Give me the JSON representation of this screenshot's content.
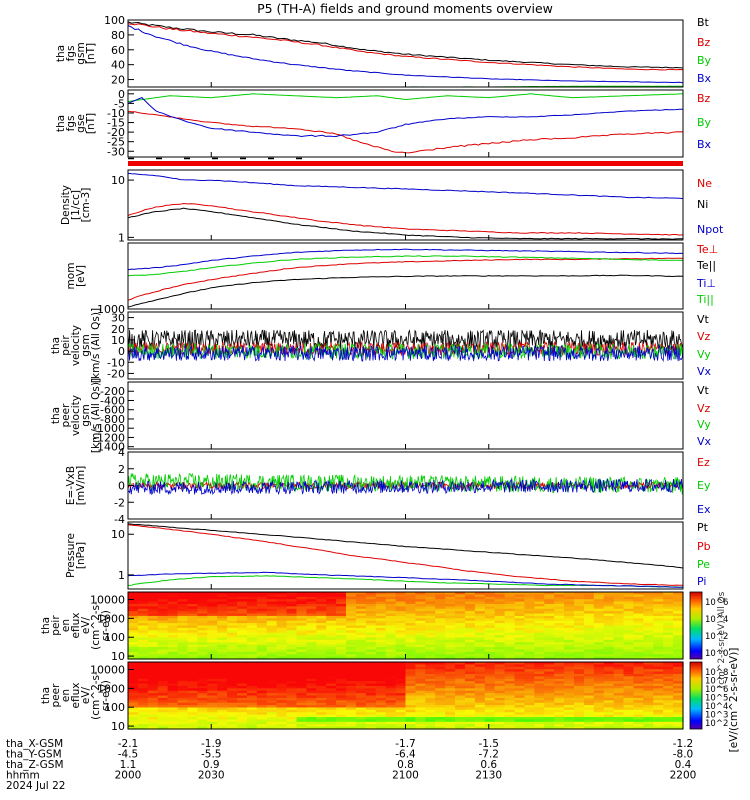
{
  "title": "P5 (TH-A) fields and ground moments overview",
  "colors": {
    "black": "#000000",
    "red": "#dd0000",
    "green": "#00cc00",
    "blue": "#0000cc"
  },
  "chart_data": [
    {
      "type": "line",
      "panel": "fgs_gsm_magnitude",
      "ylabel": [
        "tha",
        "fgs",
        "gsm",
        "[nT]"
      ],
      "ylim": [
        10,
        100
      ],
      "yticks": [
        100,
        80,
        60,
        40,
        20
      ],
      "ytick_labels": [
        "100",
        "80",
        "60",
        "40",
        "20"
      ],
      "series": [
        {
          "name": "Bt",
          "color": "#000000",
          "x": [
            2000,
            2015,
            2030,
            2045,
            2055,
            2070,
            2085,
            2100,
            2115,
            2130,
            2145,
            2160,
            2180,
            2200
          ],
          "y": [
            97,
            90,
            84,
            80,
            75,
            69,
            60,
            54,
            50,
            46,
            43,
            40,
            37,
            36
          ]
        },
        {
          "name": "Bz",
          "color": "#dd0000",
          "x": [
            2000,
            2015,
            2030,
            2045,
            2055,
            2070,
            2085,
            2100,
            2115,
            2130,
            2145,
            2160,
            2180,
            2200
          ],
          "y": [
            96,
            88,
            82,
            77,
            73,
            66,
            57,
            51,
            47,
            43,
            40,
            37,
            34,
            33
          ]
        },
        {
          "name": "By",
          "color": "#00cc00",
          "x": [
            2000,
            2030,
            2060,
            2100,
            2130,
            2160,
            2200
          ],
          "y": [
            8,
            9,
            9,
            10,
            10,
            11,
            11
          ]
        },
        {
          "name": "Bx",
          "color": "#0000cc",
          "x": [
            2000,
            2010,
            2020,
            2030,
            2045,
            2060,
            2080,
            2100,
            2130,
            2160,
            2200
          ],
          "y": [
            92,
            78,
            67,
            58,
            48,
            40,
            32,
            26,
            21,
            18,
            16
          ]
        }
      ]
    },
    {
      "type": "line",
      "panel": "fgs_gse_components",
      "ylabel": [
        "tha",
        "fgs",
        "gse",
        "[nT]"
      ],
      "ylim": [
        -33,
        2
      ],
      "yticks": [
        0,
        -5,
        -10,
        -15,
        -20,
        -25,
        -30
      ],
      "ytick_labels": [
        "0",
        "-5",
        "-10",
        "-15",
        "-20",
        "-25",
        "-30"
      ],
      "series": [
        {
          "name": "Bz",
          "color": "#dd0000",
          "x": [
            2000,
            2010,
            2020,
            2030,
            2045,
            2060,
            2075,
            2085,
            2095,
            2100,
            2115,
            2130,
            2145,
            2160,
            2180,
            2200
          ],
          "y": [
            -9,
            -11,
            -13,
            -15,
            -17,
            -18,
            -21,
            -26,
            -30,
            -31,
            -28,
            -26,
            -24,
            -23,
            -21,
            -20
          ]
        },
        {
          "name": "By",
          "color": "#00cc00",
          "x": [
            2000,
            2015,
            2030,
            2045,
            2060,
            2075,
            2090,
            2100,
            2115,
            2130,
            2145,
            2160,
            2180,
            2200
          ],
          "y": [
            -4,
            -1,
            -2,
            0,
            -1,
            -2,
            -1,
            -3,
            -1,
            -2,
            0,
            -2,
            -1,
            0
          ]
        },
        {
          "name": "Bx",
          "color": "#0000cc",
          "x": [
            2000,
            2005,
            2010,
            2020,
            2030,
            2045,
            2060,
            2075,
            2090,
            2100,
            2115,
            2130,
            2145,
            2160,
            2180,
            2200
          ],
          "y": [
            -5,
            -2,
            -9,
            -14,
            -18,
            -20,
            -22,
            -22,
            -20,
            -16,
            -13,
            -12,
            -12,
            -11,
            -9,
            -8
          ]
        }
      ]
    },
    {
      "type": "line",
      "panel": "density",
      "scale": "log",
      "ylabel": [
        "Density",
        "[1/cc]",
        "[cm-3]"
      ],
      "ylim": [
        0.9,
        15
      ],
      "yticks": [
        10,
        1
      ],
      "ytick_labels": [
        "10",
        "1"
      ],
      "series": [
        {
          "name": "Ne",
          "color": "#dd0000",
          "x": [
            2000,
            2010,
            2020,
            2030,
            2040,
            2055,
            2070,
            2085,
            2100,
            2120,
            2140,
            2160,
            2180,
            2200
          ],
          "y": [
            2.4,
            3.4,
            3.9,
            3.6,
            3.0,
            2.4,
            1.9,
            1.6,
            1.4,
            1.3,
            1.2,
            1.2,
            1.15,
            1.1
          ]
        },
        {
          "name": "Ni",
          "color": "#000000",
          "x": [
            2000,
            2010,
            2020,
            2030,
            2045,
            2060,
            2080,
            2100,
            2120,
            2140,
            2160,
            2180,
            2200
          ],
          "y": [
            2.2,
            2.8,
            3.2,
            2.8,
            2.2,
            1.7,
            1.3,
            1.1,
            1.0,
            0.95,
            0.95,
            0.95,
            0.93
          ]
        },
        {
          "name": "Npot",
          "color": "#0000cc",
          "x": [
            2000,
            2010,
            2015,
            2020,
            2030,
            2045,
            2060,
            2080,
            2100,
            2120,
            2140,
            2160,
            2180,
            2200
          ],
          "y": [
            13,
            12,
            11,
            10,
            10,
            9,
            8,
            7.5,
            7,
            6.5,
            6,
            5.5,
            5,
            4.8
          ]
        }
      ]
    },
    {
      "type": "line",
      "panel": "temperature",
      "scale": "log",
      "ylabel": [
        "mom",
        "[eV]"
      ],
      "ylim": [
        1000,
        20000
      ],
      "yticks": [
        1000
      ],
      "ytick_labels": [
        "1000"
      ],
      "series": [
        {
          "name": "Te⊥",
          "color": "#dd0000",
          "x": [
            2000,
            2010,
            2020,
            2030,
            2045,
            2060,
            2080,
            2100,
            2120,
            2140,
            2160,
            2180,
            2200
          ],
          "y": [
            1500,
            2200,
            3000,
            3800,
            5000,
            6500,
            7800,
            8500,
            9000,
            9500,
            9500,
            9800,
            10000
          ]
        },
        {
          "name": "Te||",
          "color": "#000000",
          "x": [
            2000,
            2010,
            2020,
            2030,
            2045,
            2060,
            2080,
            2100,
            2120,
            2140,
            2160,
            2180,
            2200
          ],
          "y": [
            1100,
            1500,
            2000,
            2600,
            3300,
            3800,
            4200,
            4400,
            4500,
            4500,
            4500,
            4600,
            4400
          ]
        },
        {
          "name": "Ti⊥",
          "color": "#0000cc",
          "x": [
            2000,
            2010,
            2020,
            2030,
            2045,
            2060,
            2080,
            2100,
            2120,
            2140,
            2160,
            2180,
            2200
          ],
          "y": [
            6000,
            6500,
            7500,
            9000,
            11000,
            13000,
            14500,
            15000,
            14500,
            14000,
            13500,
            13000,
            12500
          ]
        },
        {
          "name": "Ti||",
          "color": "#00cc00",
          "x": [
            2000,
            2010,
            2020,
            2030,
            2045,
            2060,
            2080,
            2100,
            2120,
            2140,
            2160,
            2180,
            2200
          ],
          "y": [
            4500,
            4800,
            5500,
            6500,
            8000,
            9500,
            10500,
            11000,
            11000,
            10500,
            10000,
            9500,
            9000
          ]
        }
      ]
    },
    {
      "type": "line",
      "panel": "peir_velocity",
      "ylabel": [
        "tha",
        "peir",
        "velocity",
        "gsm",
        "[km/s (All Qs)]"
      ],
      "ylim": [
        -25,
        35
      ],
      "yticks": [
        30,
        20,
        10,
        0,
        -10,
        -20
      ],
      "ytick_labels": [
        "30",
        "20",
        "10",
        "0",
        "-10",
        "-20"
      ],
      "series": [
        {
          "name": "Vt",
          "color": "#000000",
          "x": [
            2000,
            2200
          ],
          "y": [
            10,
            10
          ],
          "noise": 9
        },
        {
          "name": "Vz",
          "color": "#dd0000",
          "x": [
            2000,
            2200
          ],
          "y": [
            2,
            2
          ],
          "noise": 6
        },
        {
          "name": "Vy",
          "color": "#00cc00",
          "x": [
            2000,
            2200
          ],
          "y": [
            0,
            0
          ],
          "noise": 7
        },
        {
          "name": "Vx",
          "color": "#0000cc",
          "x": [
            2000,
            2200
          ],
          "y": [
            -2,
            -2
          ],
          "noise": 7
        }
      ]
    },
    {
      "type": "line",
      "panel": "peer_velocity",
      "ylabel": [
        "tha",
        "peer",
        "velocity",
        "gsm",
        "[km/s (All Qs)]"
      ],
      "ylim": [
        -1450,
        0
      ],
      "yticks": [
        -200,
        -400,
        -600,
        -800,
        -1000,
        -1200,
        -1400
      ],
      "ytick_labels": [
        "-200",
        "-400",
        "-600",
        "-800",
        "-1000",
        "-1200",
        "-1400"
      ],
      "series": [
        {
          "name": "Vt",
          "color": "#000000",
          "x": [],
          "y": []
        },
        {
          "name": "Vz",
          "color": "#dd0000",
          "x": [],
          "y": []
        },
        {
          "name": "Vy",
          "color": "#00cc00",
          "x": [],
          "y": []
        },
        {
          "name": "Vx",
          "color": "#0000cc",
          "x": [],
          "y": []
        }
      ]
    },
    {
      "type": "line",
      "panel": "efield",
      "ylabel": [
        "E=-VxB",
        "[mV/m]"
      ],
      "ylim": [
        -4,
        4
      ],
      "yticks": [
        4,
        2,
        0,
        -2,
        -4
      ],
      "ytick_labels": [
        "4",
        "2",
        "0",
        "-2",
        "-4"
      ],
      "series": [
        {
          "name": "Ez",
          "color": "#dd0000",
          "x": [
            2000,
            2200
          ],
          "y": [
            0,
            0
          ],
          "noise": 0.4
        },
        {
          "name": "Ey",
          "color": "#00cc00",
          "x": [
            2000,
            2200
          ],
          "y": [
            0.5,
            0
          ],
          "noise": 1.0
        },
        {
          "name": "Ex",
          "color": "#0000cc",
          "x": [
            2000,
            2200
          ],
          "y": [
            -0.3,
            0
          ],
          "noise": 0.8
        }
      ]
    },
    {
      "type": "line",
      "panel": "pressure",
      "scale": "log",
      "ylabel": [
        "Pressure",
        "[nPa]"
      ],
      "ylim": [
        0.45,
        20
      ],
      "yticks": [
        10,
        1
      ],
      "ytick_labels": [
        "10",
        "1"
      ],
      "series": [
        {
          "name": "Pt",
          "color": "#000000",
          "x": [
            2000,
            2020,
            2040,
            2060,
            2080,
            2100,
            2120,
            2140,
            2160,
            2180,
            2200
          ],
          "y": [
            18,
            14,
            11,
            8.5,
            6.5,
            5,
            4,
            3.2,
            2.6,
            2.0,
            1.5
          ]
        },
        {
          "name": "Pb",
          "color": "#dd0000",
          "x": [
            2000,
            2020,
            2040,
            2060,
            2080,
            2100,
            2120,
            2140,
            2160,
            2180,
            2200
          ],
          "y": [
            17,
            12,
            8,
            5,
            3,
            2,
            1.3,
            0.9,
            0.7,
            0.6,
            0.55
          ]
        },
        {
          "name": "Pe",
          "color": "#00cc00",
          "x": [
            2000,
            2015,
            2030,
            2050,
            2070,
            2090,
            2110,
            2130,
            2150,
            2170,
            2200
          ],
          "y": [
            0.55,
            0.75,
            0.9,
            0.95,
            0.85,
            0.75,
            0.65,
            0.6,
            0.55,
            0.55,
            0.5
          ]
        },
        {
          "name": "Pi",
          "color": "#0000cc",
          "x": [
            2000,
            2015,
            2030,
            2050,
            2070,
            2090,
            2110,
            2130,
            2150,
            2170,
            2200
          ],
          "y": [
            0.95,
            1.05,
            1.1,
            1.15,
            1.0,
            0.9,
            0.8,
            0.7,
            0.6,
            0.55,
            0.5
          ]
        }
      ]
    },
    {
      "type": "heatmap",
      "panel": "peir_en_eflux",
      "scale": "log",
      "ylabel": [
        "tha",
        "peir",
        "en",
        "eflux",
        "eV/",
        "(cm^2-s-",
        "sr-eV)"
      ],
      "ylim": [
        7,
        25000
      ],
      "yticks": [
        10000,
        1000,
        100,
        10
      ],
      "ytick_labels": [
        "10000",
        "1000",
        "100",
        "10"
      ]
    },
    {
      "type": "heatmap",
      "panel": "peer_en_eflux",
      "scale": "log",
      "ylabel": [
        "tha",
        "peer",
        "en",
        "eflux",
        "eV/",
        "(cm^2-s-",
        "sr-eV)"
      ],
      "ylim": [
        7,
        25000
      ],
      "yticks": [
        10000,
        1000,
        100,
        10
      ],
      "ytick_labels": [
        "10000",
        "1000",
        "100",
        "10"
      ]
    }
  ],
  "colorbar": {
    "label": "[eV/(cm^2-s-sr-eV)]",
    "overlap_label": "(cm^2-s-sr-eV) All Qs",
    "ticks_upper": [
      "10^6",
      "10^4",
      "10^2",
      "10^0"
    ],
    "ticks_lower": [
      "10^8",
      "10^7",
      "10^6",
      "10^5",
      "10^4",
      "10^3",
      "10^2"
    ]
  },
  "xaxis": {
    "xlim": [
      2000,
      2200
    ],
    "ticks": [
      2000,
      2030,
      2100,
      2130,
      2200
    ],
    "rows": [
      {
        "label": "tha_X-GSM",
        "values": [
          "-2.1",
          "-1.9",
          "-1.7",
          "-1.5",
          "-1.2"
        ]
      },
      {
        "label": "tha_Y-GSM",
        "values": [
          "-4.5",
          "-5.5",
          "-6.4",
          "-7.2",
          "-8.0"
        ]
      },
      {
        "label": "tha_Z-GSM",
        "values": [
          "1.1",
          "0.9",
          "0.8",
          "0.6",
          "0.4"
        ]
      },
      {
        "label": "hhmm",
        "values": [
          "2000",
          "2030",
          "2100",
          "2130",
          "2200"
        ]
      }
    ],
    "date": "2024 Jul 22"
  }
}
